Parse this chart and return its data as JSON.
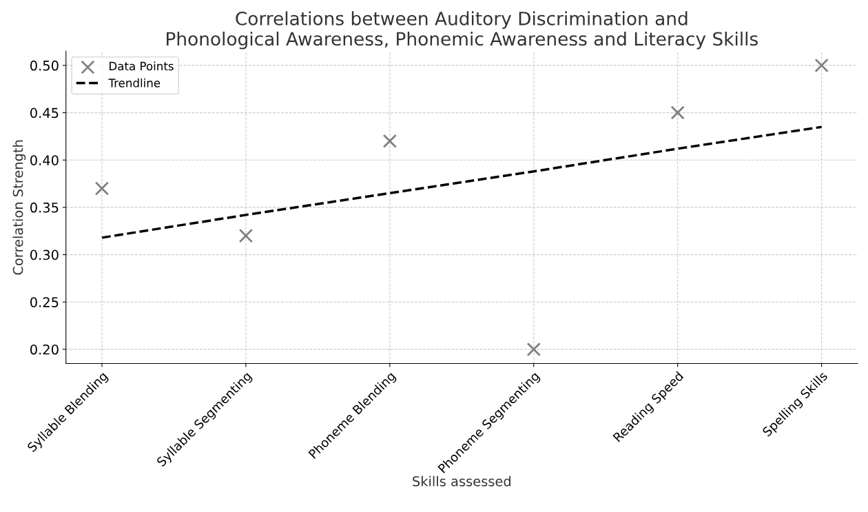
{
  "chart_data": {
    "type": "scatter",
    "title": "Correlations between Auditory Discrimination and\nPhonological Awareness, Phonemic Awareness and Literacy Skills",
    "xlabel": "Skills assessed",
    "ylabel": "Correlation Strength",
    "categories": [
      "Syllable Blending",
      "Syllable Segmenting",
      "Phoneme Blending",
      "Phoneme Segmenting",
      "Reading Speed",
      "Spelling Skills"
    ],
    "series": [
      {
        "name": "Data Points",
        "color": "#808080",
        "marker": "cross",
        "values": [
          0.37,
          0.32,
          0.42,
          0.2,
          0.45,
          0.5
        ]
      },
      {
        "name": "Trendline",
        "type": "line",
        "color": "#000000",
        "line_style": "dashed",
        "marker": "none",
        "values": [
          0.318,
          0.342,
          0.365,
          0.388,
          0.412,
          0.435
        ]
      }
    ],
    "ylim": [
      0.185,
      0.515
    ],
    "yticks": [
      {
        "value": 0.2,
        "label": "0.20"
      },
      {
        "value": 0.25,
        "label": "0.25"
      },
      {
        "value": 0.3,
        "label": "0.30"
      },
      {
        "value": 0.35,
        "label": "0.35"
      },
      {
        "value": 0.4,
        "label": "0.40"
      },
      {
        "value": 0.45,
        "label": "0.45"
      },
      {
        "value": 0.5,
        "label": "0.50"
      }
    ],
    "grid": true,
    "legend": "top left"
  }
}
